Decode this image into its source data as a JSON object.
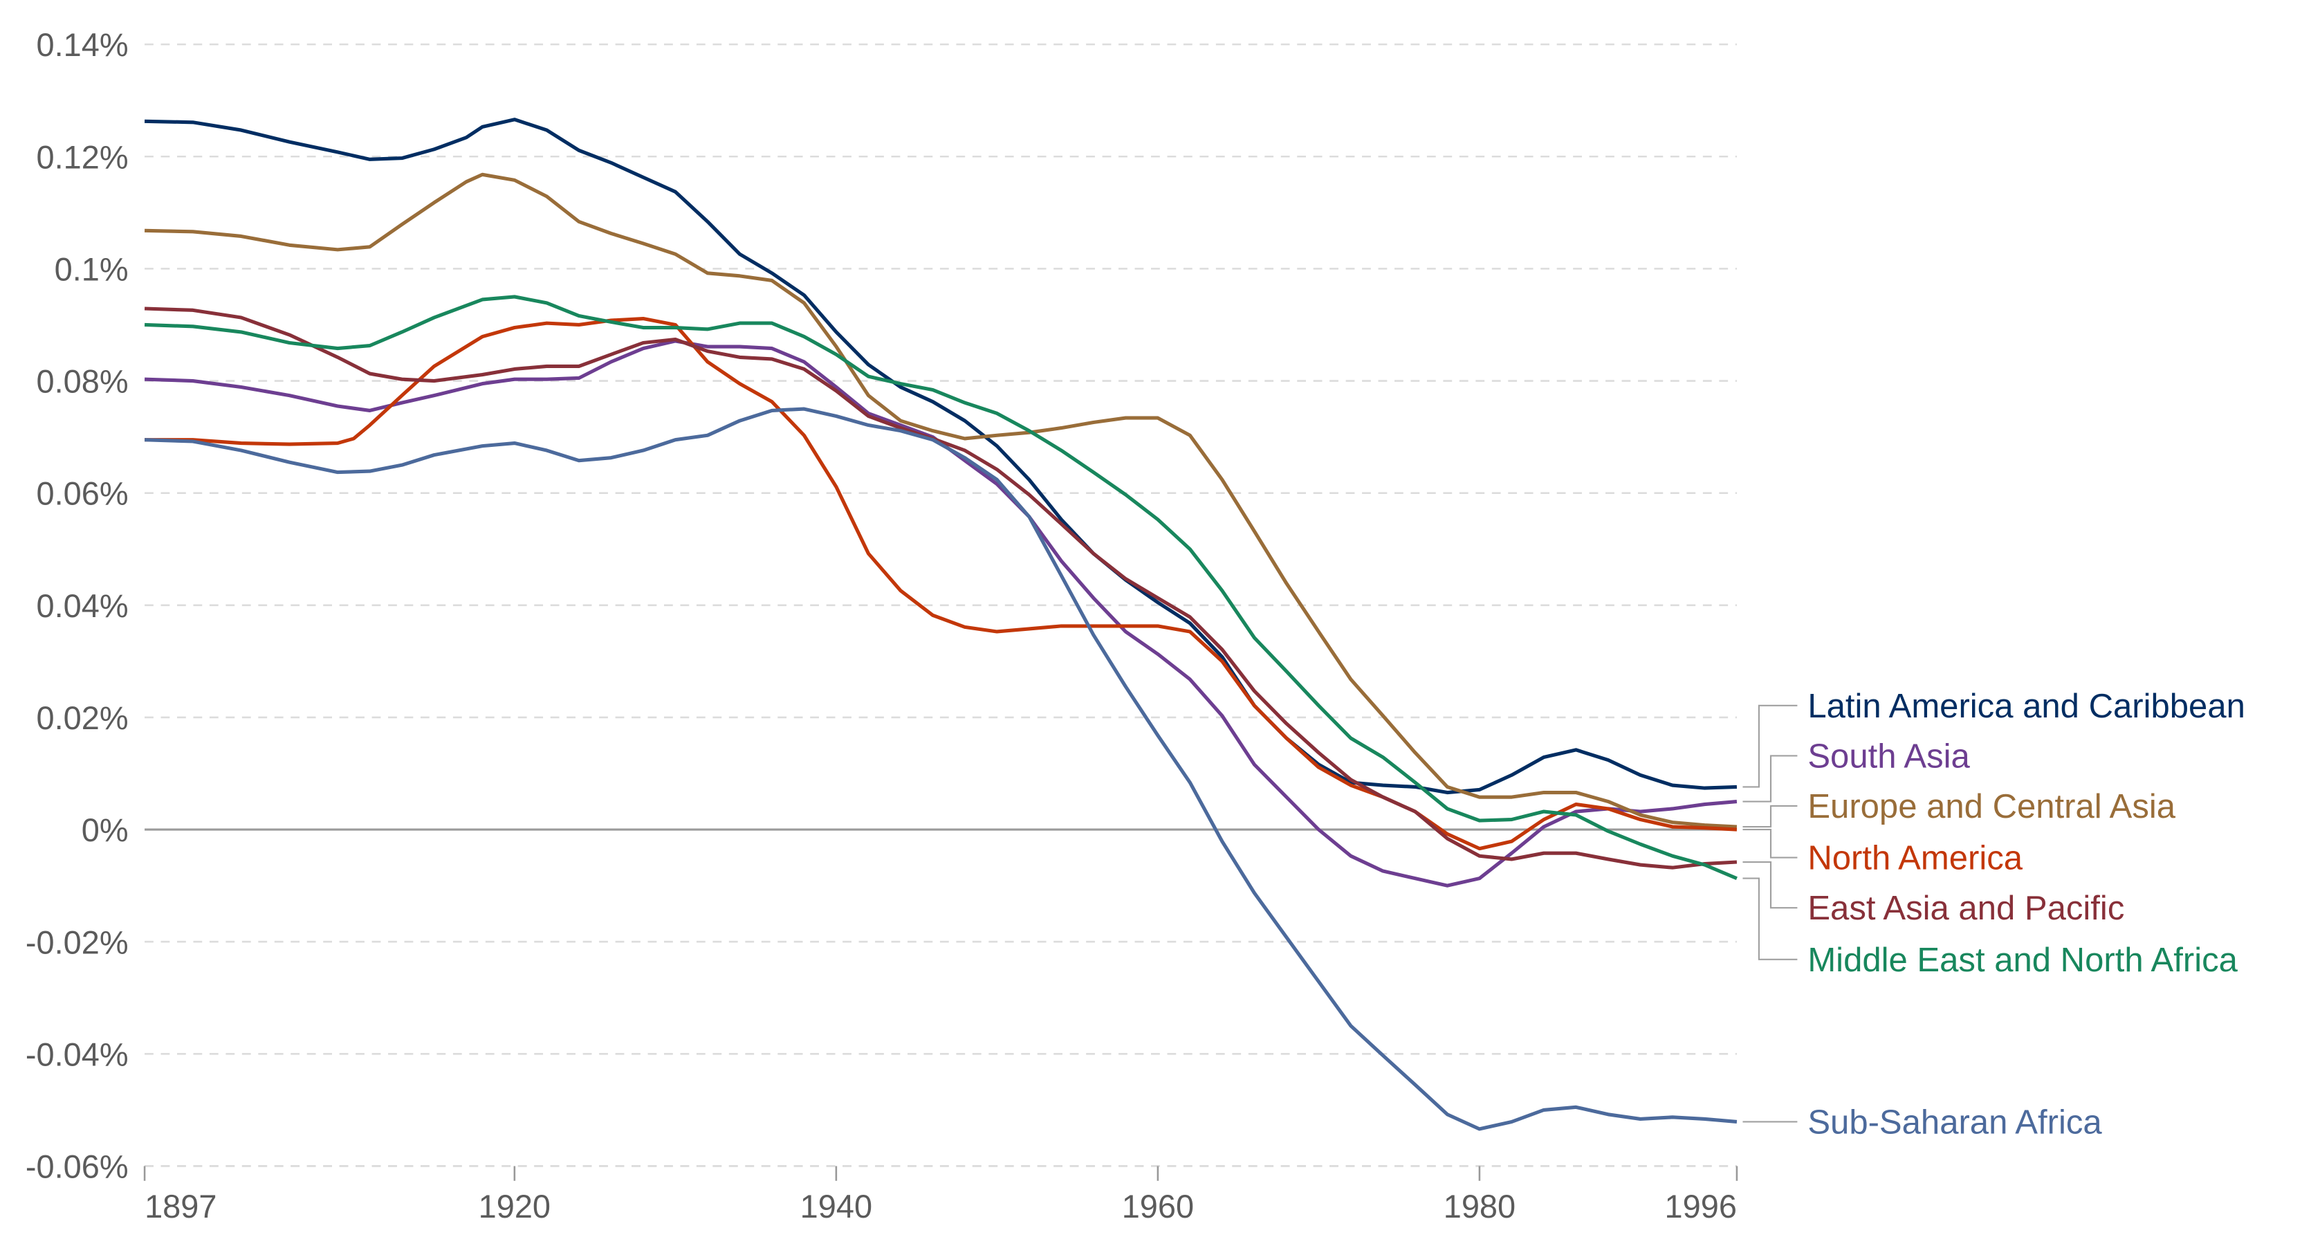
{
  "chart_data": {
    "type": "line",
    "title": "",
    "xlabel": "",
    "ylabel": "",
    "xlim": [
      1897,
      1996
    ],
    "ylim": [
      -0.06,
      0.14
    ],
    "y_unit": "%",
    "grid": "horizontal dashed",
    "legend": "right (inline labels at line ends)",
    "x_ticks": [
      "1897",
      "1920",
      "1940",
      "1960",
      "1980",
      "1996"
    ],
    "y_ticks": [
      "0.14%",
      "0.12%",
      "0.1%",
      "0.08%",
      "0.06%",
      "0.04%",
      "0.02%",
      "0%",
      "-0.02%",
      "-0.04%",
      "-0.06%"
    ],
    "series": [
      {
        "name": "Latin America and Caribbean",
        "color": "#002d62",
        "x": [
          1897,
          1900,
          1903,
          1906,
          1909,
          1911,
          1913,
          1915,
          1917,
          1918,
          1920,
          1922,
          1924,
          1926,
          1928,
          1930,
          1932,
          1934,
          1936,
          1938,
          1940,
          1942,
          1944,
          1946,
          1948,
          1950,
          1952,
          1954,
          1956,
          1958,
          1960,
          1962,
          1964,
          1966,
          1968,
          1970,
          1972,
          1974,
          1976,
          1978,
          1980,
          1982,
          1984,
          1986,
          1988,
          1990,
          1992,
          1994,
          1996
        ],
        "y": [
          0.1263,
          0.1261,
          0.1247,
          0.1226,
          0.1208,
          0.1195,
          0.1197,
          0.1213,
          0.1234,
          0.1253,
          0.1266,
          0.1247,
          0.1211,
          0.1189,
          0.1163,
          0.1137,
          0.1084,
          0.1026,
          0.0992,
          0.0953,
          0.0887,
          0.0829,
          0.0789,
          0.0763,
          0.0729,
          0.0684,
          0.0624,
          0.0553,
          0.0492,
          0.0445,
          0.0405,
          0.0368,
          0.0308,
          0.0221,
          0.0163,
          0.0116,
          0.0084,
          0.0079,
          0.0076,
          0.0066,
          0.0071,
          0.0097,
          0.0129,
          0.0142,
          0.0124,
          0.0097,
          0.0079,
          0.0074,
          0.0076
        ]
      },
      {
        "name": "South Asia",
        "color": "#6d3e91",
        "x": [
          1897,
          1900,
          1903,
          1906,
          1909,
          1911,
          1913,
          1915,
          1918,
          1920,
          1922,
          1924,
          1926,
          1928,
          1930,
          1932,
          1934,
          1936,
          1938,
          1940,
          1942,
          1944,
          1946,
          1948,
          1950,
          1952,
          1954,
          1956,
          1958,
          1960,
          1962,
          1964,
          1966,
          1968,
          1970,
          1972,
          1974,
          1976,
          1978,
          1980,
          1982,
          1984,
          1986,
          1988,
          1990,
          1992,
          1994,
          1996
        ],
        "y": [
          0.0803,
          0.08,
          0.0789,
          0.0774,
          0.0755,
          0.0747,
          0.0761,
          0.0774,
          0.0795,
          0.0803,
          0.0803,
          0.0805,
          0.0834,
          0.0858,
          0.0871,
          0.0861,
          0.0861,
          0.0858,
          0.0834,
          0.0789,
          0.0742,
          0.0721,
          0.07,
          0.0658,
          0.0616,
          0.0558,
          0.0479,
          0.0413,
          0.0353,
          0.0313,
          0.0268,
          0.0203,
          0.0116,
          0.0058,
          0.0,
          -0.0047,
          -0.0074,
          -0.0087,
          -0.01,
          -0.0087,
          -0.0042,
          0.0005,
          0.0032,
          0.0037,
          0.0032,
          0.0037,
          0.0045,
          0.005
        ]
      },
      {
        "name": "Europe and Central Asia",
        "color": "#996d39",
        "x": [
          1897,
          1900,
          1903,
          1906,
          1909,
          1911,
          1913,
          1915,
          1917,
          1918,
          1920,
          1922,
          1924,
          1926,
          1928,
          1930,
          1932,
          1934,
          1936,
          1938,
          1940,
          1942,
          1944,
          1946,
          1948,
          1950,
          1952,
          1954,
          1956,
          1958,
          1960,
          1962,
          1964,
          1966,
          1968,
          1970,
          1972,
          1974,
          1976,
          1978,
          1980,
          1982,
          1984,
          1986,
          1988,
          1990,
          1992,
          1994,
          1996
        ],
        "y": [
          0.1068,
          0.1066,
          0.1058,
          0.1042,
          0.1034,
          0.1039,
          0.1079,
          0.1118,
          0.1155,
          0.1168,
          0.1158,
          0.1129,
          0.1084,
          0.1063,
          0.1045,
          0.1026,
          0.0992,
          0.0987,
          0.0979,
          0.0939,
          0.0861,
          0.0774,
          0.0729,
          0.0711,
          0.0697,
          0.0703,
          0.0708,
          0.0716,
          0.0726,
          0.0734,
          0.0734,
          0.0703,
          0.0624,
          0.0532,
          0.0439,
          0.0353,
          0.0268,
          0.0203,
          0.0137,
          0.0076,
          0.0058,
          0.0058,
          0.0066,
          0.0066,
          0.005,
          0.0026,
          0.0013,
          0.0008,
          0.0005
        ]
      },
      {
        "name": "North America",
        "color": "#c33709",
        "x": [
          1897,
          1900,
          1903,
          1906,
          1909,
          1910,
          1911,
          1913,
          1915,
          1918,
          1920,
          1922,
          1924,
          1926,
          1928,
          1930,
          1932,
          1934,
          1936,
          1938,
          1940,
          1942,
          1944,
          1946,
          1948,
          1950,
          1952,
          1954,
          1956,
          1958,
          1960,
          1962,
          1964,
          1966,
          1968,
          1970,
          1972,
          1974,
          1976,
          1978,
          1980,
          1982,
          1984,
          1986,
          1988,
          1990,
          1992,
          1994,
          1996
        ],
        "y": [
          0.0695,
          0.0695,
          0.0689,
          0.0687,
          0.0689,
          0.0697,
          0.0721,
          0.0774,
          0.0826,
          0.0879,
          0.0895,
          0.0903,
          0.09,
          0.0908,
          0.0911,
          0.09,
          0.0834,
          0.0795,
          0.0763,
          0.0703,
          0.0611,
          0.0492,
          0.0426,
          0.0382,
          0.0361,
          0.0353,
          0.0358,
          0.0363,
          0.0363,
          0.0363,
          0.0363,
          0.0353,
          0.03,
          0.0221,
          0.0163,
          0.0111,
          0.0079,
          0.0058,
          0.0032,
          -0.0008,
          -0.0034,
          -0.0021,
          0.0018,
          0.0045,
          0.0037,
          0.0018,
          0.0005,
          0.0003,
          0.0
        ]
      },
      {
        "name": "East Asia and Pacific",
        "color": "#883039",
        "x": [
          1897,
          1900,
          1903,
          1906,
          1909,
          1911,
          1913,
          1915,
          1918,
          1920,
          1922,
          1924,
          1926,
          1928,
          1930,
          1932,
          1934,
          1936,
          1938,
          1940,
          1942,
          1944,
          1946,
          1948,
          1950,
          1952,
          1954,
          1956,
          1958,
          1960,
          1962,
          1964,
          1966,
          1968,
          1970,
          1972,
          1974,
          1976,
          1978,
          1980,
          1982,
          1984,
          1986,
          1988,
          1990,
          1992,
          1994,
          1996
        ],
        "y": [
          0.0929,
          0.0926,
          0.0913,
          0.0882,
          0.0842,
          0.0813,
          0.0803,
          0.08,
          0.0811,
          0.0821,
          0.0826,
          0.0826,
          0.0847,
          0.0868,
          0.0874,
          0.0853,
          0.0842,
          0.0839,
          0.0821,
          0.0782,
          0.0737,
          0.0716,
          0.0697,
          0.0676,
          0.0642,
          0.0597,
          0.0545,
          0.0492,
          0.0447,
          0.0413,
          0.0379,
          0.0321,
          0.0247,
          0.0189,
          0.0137,
          0.0089,
          0.0058,
          0.0032,
          -0.0016,
          -0.0047,
          -0.0053,
          -0.0042,
          -0.0042,
          -0.0053,
          -0.0063,
          -0.0068,
          -0.0061,
          -0.0058
        ]
      },
      {
        "name": "Middle East and North Africa",
        "color": "#18875d",
        "x": [
          1897,
          1900,
          1903,
          1906,
          1909,
          1911,
          1913,
          1915,
          1918,
          1920,
          1922,
          1924,
          1926,
          1928,
          1930,
          1932,
          1934,
          1936,
          1938,
          1940,
          1942,
          1944,
          1946,
          1948,
          1950,
          1952,
          1954,
          1956,
          1958,
          1960,
          1962,
          1964,
          1966,
          1968,
          1970,
          1972,
          1974,
          1976,
          1978,
          1980,
          1982,
          1984,
          1986,
          1988,
          1990,
          1992,
          1994,
          1996
        ],
        "y": [
          0.09,
          0.0897,
          0.0887,
          0.0868,
          0.0858,
          0.0863,
          0.0887,
          0.0913,
          0.0945,
          0.095,
          0.0939,
          0.0916,
          0.0905,
          0.0895,
          0.0895,
          0.0892,
          0.0903,
          0.0903,
          0.0879,
          0.0847,
          0.0808,
          0.0795,
          0.0784,
          0.0761,
          0.0742,
          0.0711,
          0.0676,
          0.0637,
          0.0597,
          0.0553,
          0.05,
          0.0426,
          0.0342,
          0.0282,
          0.0221,
          0.0163,
          0.0129,
          0.0084,
          0.0037,
          0.0016,
          0.0018,
          0.0032,
          0.0026,
          -0.0003,
          -0.0026,
          -0.0047,
          -0.0063,
          -0.0087
        ]
      },
      {
        "name": "Sub-Saharan Africa",
        "color": "#4c6a9c",
        "x": [
          1897,
          1900,
          1903,
          1906,
          1909,
          1911,
          1913,
          1915,
          1918,
          1920,
          1922,
          1924,
          1926,
          1928,
          1930,
          1932,
          1934,
          1936,
          1938,
          1940,
          1942,
          1944,
          1946,
          1948,
          1950,
          1952,
          1954,
          1956,
          1958,
          1960,
          1962,
          1964,
          1966,
          1968,
          1970,
          1972,
          1974,
          1976,
          1978,
          1980,
          1982,
          1984,
          1986,
          1988,
          1990,
          1992,
          1994,
          1996
        ],
        "y": [
          0.0695,
          0.0692,
          0.0676,
          0.0655,
          0.0637,
          0.0639,
          0.065,
          0.0668,
          0.0684,
          0.0689,
          0.0676,
          0.0658,
          0.0663,
          0.0676,
          0.0695,
          0.0703,
          0.0729,
          0.0747,
          0.075,
          0.0737,
          0.0721,
          0.0711,
          0.0695,
          0.0663,
          0.0624,
          0.0558,
          0.0453,
          0.0347,
          0.0255,
          0.0168,
          0.0084,
          -0.0021,
          -0.0113,
          -0.0192,
          -0.0271,
          -0.035,
          -0.0403,
          -0.0455,
          -0.0508,
          -0.0534,
          -0.0521,
          -0.05,
          -0.0495,
          -0.0508,
          -0.0516,
          -0.0513,
          -0.0516,
          -0.0521
        ]
      }
    ]
  }
}
